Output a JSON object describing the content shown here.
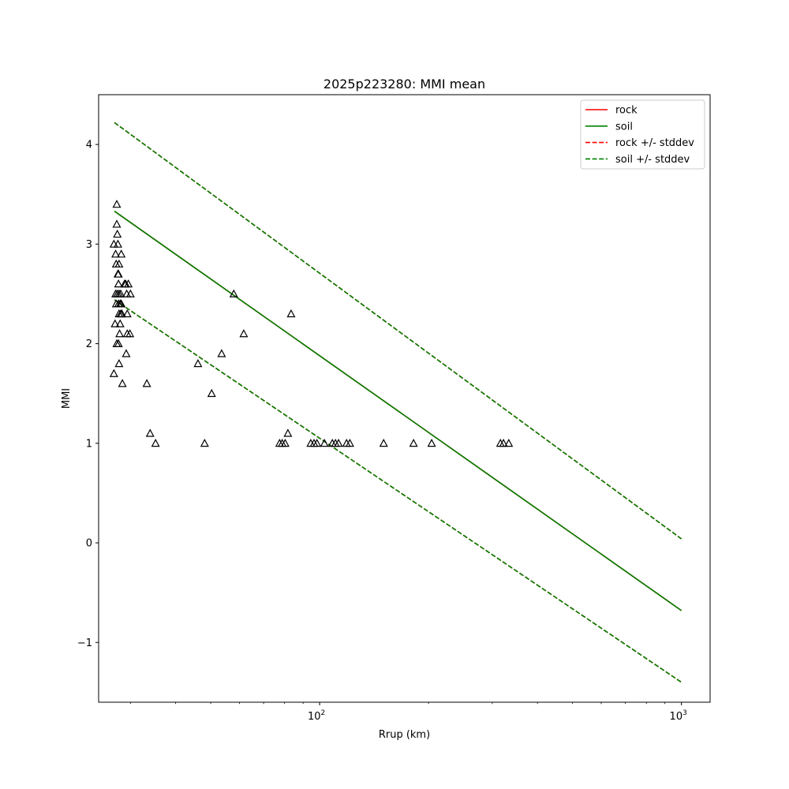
{
  "chart_data": {
    "type": "scatter",
    "title": "2025p223280: MMI mean",
    "xlabel": "Rrup (km)",
    "ylabel": "MMI",
    "xscale": "log",
    "xlim": [
      24.5,
      1200
    ],
    "ylim": [
      -1.6,
      4.5
    ],
    "yticks": [
      -1,
      0,
      1,
      2,
      3,
      4
    ],
    "yticklabels": [
      "−1",
      "0",
      "1",
      "2",
      "3",
      "4"
    ],
    "xticks": [
      100,
      1000
    ],
    "xticklabels": [
      {
        "base": "10",
        "exp": "2"
      },
      {
        "base": "10",
        "exp": "3"
      }
    ],
    "grid": false,
    "legend_position": "top-right",
    "lines": [
      {
        "name": "rock",
        "style": "solid",
        "color": "#ff0000",
        "x": [
          27.1,
          1000
        ],
        "y": [
          3.33,
          -0.68
        ]
      },
      {
        "name": "soil",
        "style": "solid",
        "color": "#008000",
        "x": [
          27.1,
          1000
        ],
        "y": [
          3.33,
          -0.68
        ]
      },
      {
        "name": "rock +/- stddev",
        "style": "dashed",
        "color": "#ff0000",
        "x": [
          27.1,
          1000
        ],
        "y": [
          4.22,
          0.04
        ]
      },
      {
        "name": "rock +/- stddev",
        "style": "dashed",
        "color": "#ff0000",
        "x": [
          27.1,
          1000
        ],
        "y": [
          2.44,
          -1.4
        ]
      },
      {
        "name": "soil +/- stddev",
        "style": "dashed",
        "color": "#008000",
        "x": [
          27.1,
          1000
        ],
        "y": [
          4.22,
          0.04
        ]
      },
      {
        "name": "soil +/- stddev",
        "style": "dashed",
        "color": "#008000",
        "x": [
          27.1,
          1000
        ],
        "y": [
          2.44,
          -1.4
        ]
      }
    ],
    "legend": [
      {
        "label": "rock",
        "style": "solid",
        "color": "#ff0000"
      },
      {
        "label": "soil",
        "style": "solid",
        "color": "#008000"
      },
      {
        "label": "rock +/- stddev",
        "style": "dashed",
        "color": "#ff0000"
      },
      {
        "label": "soil +/- stddev",
        "style": "dashed",
        "color": "#008000"
      }
    ],
    "observations": {
      "marker": "triangle-open",
      "color": "#000000",
      "points": [
        [
          27.5,
          3.4
        ],
        [
          27.5,
          3.2
        ],
        [
          27.6,
          3.1
        ],
        [
          27.0,
          3.0
        ],
        [
          27.7,
          3.0
        ],
        [
          27.3,
          2.9
        ],
        [
          28.3,
          2.9
        ],
        [
          27.4,
          2.8
        ],
        [
          27.9,
          2.8
        ],
        [
          27.7,
          2.7
        ],
        [
          27.8,
          2.7
        ],
        [
          27.8,
          2.6
        ],
        [
          28.9,
          2.6
        ],
        [
          29.1,
          2.6
        ],
        [
          29.6,
          2.6
        ],
        [
          27.3,
          2.5
        ],
        [
          27.6,
          2.5
        ],
        [
          27.9,
          2.5
        ],
        [
          28.2,
          2.5
        ],
        [
          29.3,
          2.5
        ],
        [
          30.0,
          2.5
        ],
        [
          27.4,
          2.4
        ],
        [
          27.8,
          2.4
        ],
        [
          28.1,
          2.4
        ],
        [
          28.3,
          2.4
        ],
        [
          27.9,
          2.3
        ],
        [
          28.2,
          2.3
        ],
        [
          28.4,
          2.3
        ],
        [
          29.4,
          2.3
        ],
        [
          27.2,
          2.2
        ],
        [
          28.1,
          2.2
        ],
        [
          28.0,
          2.1
        ],
        [
          29.4,
          2.1
        ],
        [
          29.9,
          2.1
        ],
        [
          27.5,
          2.0
        ],
        [
          27.8,
          2.0
        ],
        [
          29.2,
          1.9
        ],
        [
          27.9,
          1.8
        ],
        [
          27.0,
          1.7
        ],
        [
          28.5,
          1.6
        ],
        [
          33.3,
          1.6
        ],
        [
          34.0,
          1.1
        ],
        [
          35.2,
          1.0
        ],
        [
          46.1,
          1.8
        ],
        [
          48.1,
          1.0
        ],
        [
          50.3,
          1.5
        ],
        [
          53.6,
          1.9
        ],
        [
          57.9,
          2.5
        ],
        [
          61.7,
          2.1
        ],
        [
          77.5,
          1.0
        ],
        [
          78.8,
          1.0
        ],
        [
          80.3,
          1.0
        ],
        [
          81.7,
          1.1
        ],
        [
          83.4,
          2.3
        ],
        [
          94.5,
          1.0
        ],
        [
          96.5,
          1.0
        ],
        [
          98.3,
          1.0
        ],
        [
          103.1,
          1.0
        ],
        [
          108.4,
          1.0
        ],
        [
          110.6,
          1.0
        ],
        [
          112.8,
          1.0
        ],
        [
          118.7,
          1.0
        ],
        [
          121.2,
          1.0
        ],
        [
          150.3,
          1.0
        ],
        [
          181.8,
          1.0
        ],
        [
          204.0,
          1.0
        ],
        [
          316.0,
          1.0
        ],
        [
          322.2,
          1.0
        ],
        [
          333.2,
          1.0
        ]
      ]
    }
  }
}
